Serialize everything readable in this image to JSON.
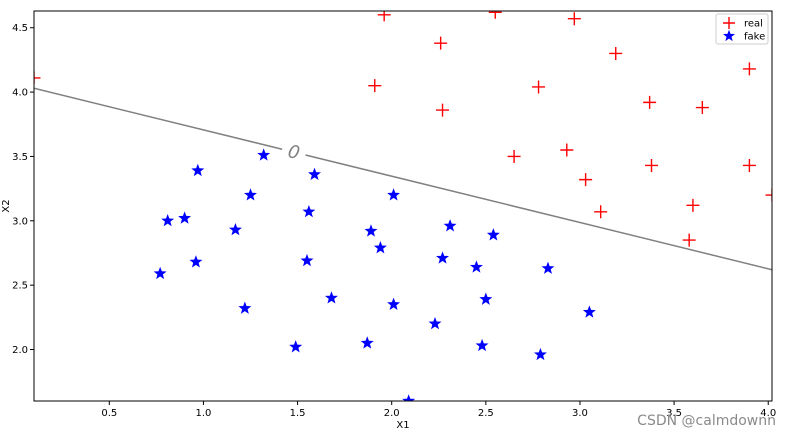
{
  "chart_data": {
    "type": "scatter",
    "xlabel": "X1",
    "ylabel": "X2",
    "xlim": [
      0.1,
      4.02
    ],
    "ylim": [
      1.6,
      4.63
    ],
    "xticks": [
      "0.5",
      "1.0",
      "1.5",
      "2.0",
      "2.5",
      "3.0",
      "3.5",
      "4.0"
    ],
    "yticks": [
      "2.0",
      "2.5",
      "3.0",
      "3.5",
      "4.0",
      "4.5"
    ],
    "grid": false,
    "legend_position": "top-right",
    "series": [
      {
        "name": "real",
        "marker": "plus",
        "color": "#ff0000",
        "points": [
          [
            0.1,
            4.11
          ],
          [
            1.96,
            4.6
          ],
          [
            2.55,
            4.62
          ],
          [
            2.97,
            4.57
          ],
          [
            2.26,
            4.38
          ],
          [
            3.19,
            4.3
          ],
          [
            3.9,
            4.18
          ],
          [
            1.91,
            4.05
          ],
          [
            2.78,
            4.04
          ],
          [
            3.37,
            3.92
          ],
          [
            2.27,
            3.86
          ],
          [
            3.65,
            3.88
          ],
          [
            2.93,
            3.55
          ],
          [
            2.65,
            3.5
          ],
          [
            3.38,
            3.43
          ],
          [
            3.9,
            3.43
          ],
          [
            3.03,
            3.32
          ],
          [
            4.02,
            3.2
          ],
          [
            3.6,
            3.12
          ],
          [
            3.11,
            3.07
          ],
          [
            3.58,
            2.85
          ]
        ]
      },
      {
        "name": "fake",
        "marker": "star",
        "color": "#0000ff",
        "points": [
          [
            1.32,
            3.51
          ],
          [
            0.97,
            3.39
          ],
          [
            1.59,
            3.36
          ],
          [
            1.25,
            3.2
          ],
          [
            2.01,
            3.2
          ],
          [
            0.81,
            3.0
          ],
          [
            0.9,
            3.02
          ],
          [
            1.56,
            3.07
          ],
          [
            1.17,
            2.93
          ],
          [
            1.89,
            2.92
          ],
          [
            2.31,
            2.96
          ],
          [
            2.54,
            2.89
          ],
          [
            1.94,
            2.79
          ],
          [
            0.96,
            2.68
          ],
          [
            1.55,
            2.69
          ],
          [
            2.27,
            2.71
          ],
          [
            0.77,
            2.59
          ],
          [
            2.45,
            2.64
          ],
          [
            2.83,
            2.63
          ],
          [
            1.68,
            2.4
          ],
          [
            2.5,
            2.39
          ],
          [
            1.22,
            2.32
          ],
          [
            2.01,
            2.35
          ],
          [
            3.05,
            2.29
          ],
          [
            2.23,
            2.2
          ],
          [
            1.49,
            2.02
          ],
          [
            1.87,
            2.05
          ],
          [
            2.48,
            2.03
          ],
          [
            2.79,
            1.96
          ],
          [
            2.09,
            1.6
          ]
        ]
      }
    ],
    "boundary": {
      "label": "0",
      "color": "#808080",
      "points": [
        [
          0.1,
          4.03
        ],
        [
          4.02,
          2.62
        ]
      ],
      "label_x": 1.48
    }
  },
  "watermark": "CSDN @calmdownn"
}
